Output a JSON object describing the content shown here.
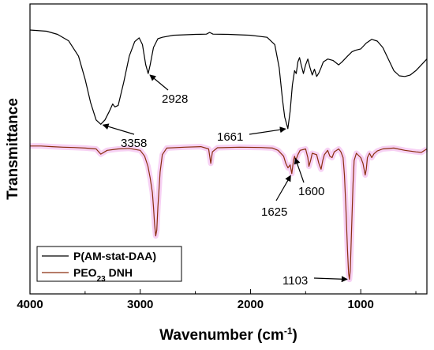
{
  "chart_data": {
    "type": "line",
    "xlabel": "Wavenumber (cm",
    "xlabel_sup": "-1",
    "xlabel_end": ")",
    "ylabel": "Transmittance",
    "xlim": [
      4000,
      400
    ],
    "x_reversed": true,
    "ylim": [
      0,
      100
    ],
    "y_tick_labels": false,
    "x_ticks": [
      {
        "value": 4000,
        "label": "4000"
      },
      {
        "value": 3000,
        "label": "3000"
      },
      {
        "value": 2000,
        "label": "2000"
      },
      {
        "value": 1000,
        "label": "1000"
      }
    ],
    "legend_position": "bottom-left",
    "series": [
      {
        "name": "P(AM-stat-DAA)",
        "color": "#000000",
        "points": [
          [
            4000,
            91
          ],
          [
            3850,
            90.6
          ],
          [
            3750,
            89.5
          ],
          [
            3650,
            87.3
          ],
          [
            3560,
            82
          ],
          [
            3500,
            74
          ],
          [
            3450,
            66
          ],
          [
            3400,
            60
          ],
          [
            3358,
            58.5
          ],
          [
            3320,
            60
          ],
          [
            3280,
            63
          ],
          [
            3250,
            65.5
          ],
          [
            3230,
            64.5
          ],
          [
            3200,
            65
          ],
          [
            3150,
            73
          ],
          [
            3100,
            82
          ],
          [
            3050,
            87
          ],
          [
            3010,
            88.3
          ],
          [
            2980,
            86
          ],
          [
            2950,
            79
          ],
          [
            2928,
            76
          ],
          [
            2910,
            79
          ],
          [
            2880,
            85
          ],
          [
            2840,
            88
          ],
          [
            2800,
            88.5
          ],
          [
            2700,
            89.2
          ],
          [
            2500,
            89.5
          ],
          [
            2400,
            89.6
          ],
          [
            2370,
            90.2
          ],
          [
            2340,
            89.6
          ],
          [
            2200,
            89.5
          ],
          [
            2000,
            89.2
          ],
          [
            1850,
            88.5
          ],
          [
            1780,
            86
          ],
          [
            1740,
            78
          ],
          [
            1710,
            67
          ],
          [
            1690,
            61
          ],
          [
            1661,
            57
          ],
          [
            1640,
            63
          ],
          [
            1620,
            72
          ],
          [
            1600,
            77
          ],
          [
            1585,
            76
          ],
          [
            1570,
            80
          ],
          [
            1555,
            81.5
          ],
          [
            1540,
            79
          ],
          [
            1520,
            76
          ],
          [
            1500,
            79
          ],
          [
            1480,
            81
          ],
          [
            1460,
            78
          ],
          [
            1440,
            75.5
          ],
          [
            1420,
            77.5
          ],
          [
            1400,
            75
          ],
          [
            1380,
            76.2
          ],
          [
            1360,
            78
          ],
          [
            1340,
            80
          ],
          [
            1300,
            81
          ],
          [
            1250,
            80.5
          ],
          [
            1200,
            79
          ],
          [
            1170,
            80
          ],
          [
            1120,
            82
          ],
          [
            1080,
            83.5
          ],
          [
            1050,
            84
          ],
          [
            1000,
            84.5
          ],
          [
            950,
            86.5
          ],
          [
            900,
            87.8
          ],
          [
            850,
            87.2
          ],
          [
            800,
            85
          ],
          [
            750,
            81
          ],
          [
            700,
            77
          ],
          [
            650,
            75.2
          ],
          [
            600,
            75
          ],
          [
            550,
            75.5
          ],
          [
            500,
            77
          ],
          [
            450,
            79
          ],
          [
            400,
            81
          ]
        ]
      },
      {
        "name": "PEO",
        "name_sub": "23",
        "name_end": " DNH",
        "color": "#8b2e0f",
        "points": [
          [
            4000,
            51
          ],
          [
            3900,
            51
          ],
          [
            3800,
            50.8
          ],
          [
            3700,
            50.6
          ],
          [
            3600,
            50.5
          ],
          [
            3500,
            50.3
          ],
          [
            3400,
            50
          ],
          [
            3358,
            48.2
          ],
          [
            3300,
            49.5
          ],
          [
            3200,
            50
          ],
          [
            3100,
            50.2
          ],
          [
            3000,
            49.5
          ],
          [
            2960,
            47.5
          ],
          [
            2930,
            44
          ],
          [
            2910,
            40
          ],
          [
            2890,
            35
          ],
          [
            2880,
            30
          ],
          [
            2870,
            24
          ],
          [
            2860,
            20
          ],
          [
            2850,
            22
          ],
          [
            2840,
            30
          ],
          [
            2820,
            42
          ],
          [
            2800,
            48
          ],
          [
            2760,
            50.3
          ],
          [
            2600,
            50.6
          ],
          [
            2450,
            50.8
          ],
          [
            2380,
            50
          ],
          [
            2360,
            45
          ],
          [
            2345,
            49
          ],
          [
            2300,
            50.4
          ],
          [
            2100,
            50.6
          ],
          [
            1900,
            50.5
          ],
          [
            1800,
            50.3
          ],
          [
            1750,
            49.5
          ],
          [
            1700,
            47.5
          ],
          [
            1680,
            45
          ],
          [
            1660,
            43.5
          ],
          [
            1640,
            44.5
          ],
          [
            1625,
            41.5
          ],
          [
            1610,
            46
          ],
          [
            1600,
            47.5
          ],
          [
            1590,
            46
          ],
          [
            1570,
            48
          ],
          [
            1550,
            49.5
          ],
          [
            1500,
            50
          ],
          [
            1480,
            47
          ],
          [
            1470,
            44
          ],
          [
            1455,
            46
          ],
          [
            1440,
            48.5
          ],
          [
            1400,
            48
          ],
          [
            1380,
            45
          ],
          [
            1360,
            43
          ],
          [
            1345,
            46
          ],
          [
            1330,
            48
          ],
          [
            1300,
            49.5
          ],
          [
            1280,
            47.5
          ],
          [
            1260,
            47
          ],
          [
            1240,
            49
          ],
          [
            1200,
            50
          ],
          [
            1180,
            49
          ],
          [
            1160,
            47
          ],
          [
            1148,
            41
          ],
          [
            1135,
            30
          ],
          [
            1120,
            15
          ],
          [
            1110,
            7
          ],
          [
            1103,
            5
          ],
          [
            1095,
            8
          ],
          [
            1085,
            20
          ],
          [
            1070,
            38
          ],
          [
            1060,
            46
          ],
          [
            1040,
            48.5
          ],
          [
            1000,
            47
          ],
          [
            980,
            45
          ],
          [
            960,
            41
          ],
          [
            950,
            43
          ],
          [
            940,
            47
          ],
          [
            920,
            48.5
          ],
          [
            900,
            47
          ],
          [
            880,
            48.3
          ],
          [
            850,
            49.3
          ],
          [
            800,
            50
          ],
          [
            700,
            50.3
          ],
          [
            600,
            49.5
          ],
          [
            500,
            49
          ],
          [
            450,
            48.8
          ],
          [
            420,
            49.5
          ],
          [
            400,
            50
          ]
        ]
      }
    ],
    "annotations": [
      {
        "label": "3358",
        "peak": [
          3358,
          58.5
        ]
      },
      {
        "label": "2928",
        "peak": [
          2928,
          76
        ]
      },
      {
        "label": "1661",
        "peak": [
          1661,
          57
        ]
      },
      {
        "label": "1625",
        "peak": [
          1625,
          41.5
        ]
      },
      {
        "label": "1600",
        "peak": [
          1600,
          47.5
        ]
      },
      {
        "label": "1103",
        "peak": [
          1103,
          5
        ]
      }
    ]
  }
}
